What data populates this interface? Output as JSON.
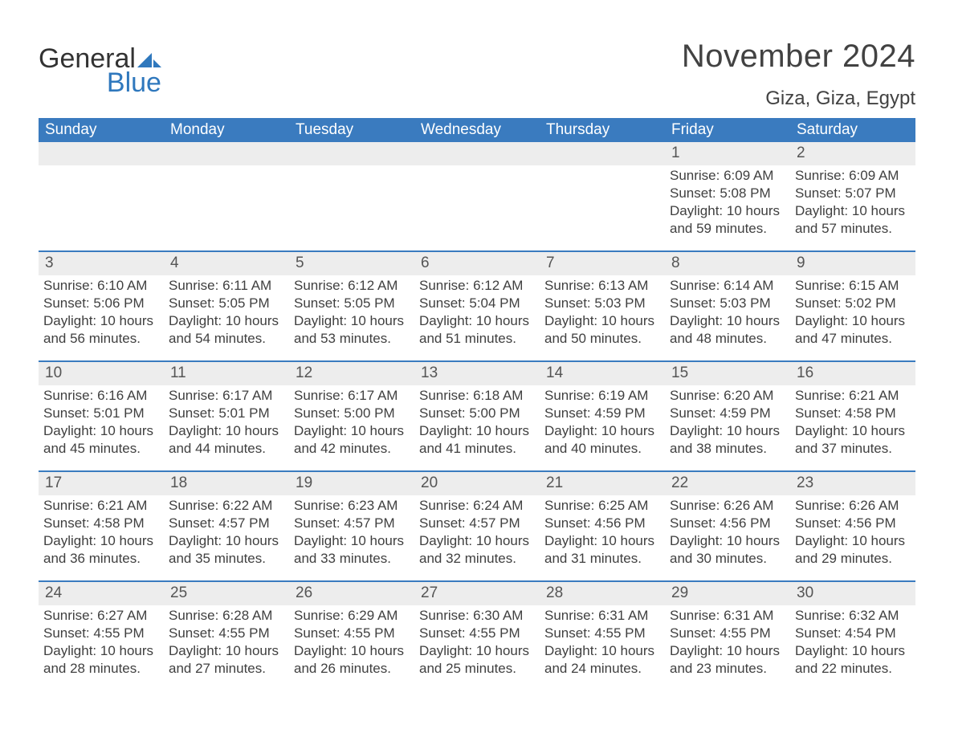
{
  "brand": {
    "word1": "General",
    "word2": "Blue"
  },
  "title": "November 2024",
  "location": "Giza, Giza, Egypt",
  "colors": {
    "header_bg": "#3a7bbf",
    "header_text": "#ffffff",
    "daynum_bg": "#ededed",
    "border": "#3a7bbf",
    "body_text": "#404040",
    "logo_blue": "#2f78bd"
  },
  "fonts": {
    "title_size_pt": 30,
    "location_size_pt": 18,
    "header_size_pt": 14,
    "body_size_pt": 13
  },
  "layout": {
    "columns": 7,
    "rows": 5
  },
  "day_headers": [
    "Sunday",
    "Monday",
    "Tuesday",
    "Wednesday",
    "Thursday",
    "Friday",
    "Saturday"
  ],
  "weeks": [
    [
      null,
      null,
      null,
      null,
      null,
      {
        "n": "1",
        "sunrise": "6:09 AM",
        "sunset": "5:08 PM",
        "daylight": "10 hours and 59 minutes."
      },
      {
        "n": "2",
        "sunrise": "6:09 AM",
        "sunset": "5:07 PM",
        "daylight": "10 hours and 57 minutes."
      }
    ],
    [
      {
        "n": "3",
        "sunrise": "6:10 AM",
        "sunset": "5:06 PM",
        "daylight": "10 hours and 56 minutes."
      },
      {
        "n": "4",
        "sunrise": "6:11 AM",
        "sunset": "5:05 PM",
        "daylight": "10 hours and 54 minutes."
      },
      {
        "n": "5",
        "sunrise": "6:12 AM",
        "sunset": "5:05 PM",
        "daylight": "10 hours and 53 minutes."
      },
      {
        "n": "6",
        "sunrise": "6:12 AM",
        "sunset": "5:04 PM",
        "daylight": "10 hours and 51 minutes."
      },
      {
        "n": "7",
        "sunrise": "6:13 AM",
        "sunset": "5:03 PM",
        "daylight": "10 hours and 50 minutes."
      },
      {
        "n": "8",
        "sunrise": "6:14 AM",
        "sunset": "5:03 PM",
        "daylight": "10 hours and 48 minutes."
      },
      {
        "n": "9",
        "sunrise": "6:15 AM",
        "sunset": "5:02 PM",
        "daylight": "10 hours and 47 minutes."
      }
    ],
    [
      {
        "n": "10",
        "sunrise": "6:16 AM",
        "sunset": "5:01 PM",
        "daylight": "10 hours and 45 minutes."
      },
      {
        "n": "11",
        "sunrise": "6:17 AM",
        "sunset": "5:01 PM",
        "daylight": "10 hours and 44 minutes."
      },
      {
        "n": "12",
        "sunrise": "6:17 AM",
        "sunset": "5:00 PM",
        "daylight": "10 hours and 42 minutes."
      },
      {
        "n": "13",
        "sunrise": "6:18 AM",
        "sunset": "5:00 PM",
        "daylight": "10 hours and 41 minutes."
      },
      {
        "n": "14",
        "sunrise": "6:19 AM",
        "sunset": "4:59 PM",
        "daylight": "10 hours and 40 minutes."
      },
      {
        "n": "15",
        "sunrise": "6:20 AM",
        "sunset": "4:59 PM",
        "daylight": "10 hours and 38 minutes."
      },
      {
        "n": "16",
        "sunrise": "6:21 AM",
        "sunset": "4:58 PM",
        "daylight": "10 hours and 37 minutes."
      }
    ],
    [
      {
        "n": "17",
        "sunrise": "6:21 AM",
        "sunset": "4:58 PM",
        "daylight": "10 hours and 36 minutes."
      },
      {
        "n": "18",
        "sunrise": "6:22 AM",
        "sunset": "4:57 PM",
        "daylight": "10 hours and 35 minutes."
      },
      {
        "n": "19",
        "sunrise": "6:23 AM",
        "sunset": "4:57 PM",
        "daylight": "10 hours and 33 minutes."
      },
      {
        "n": "20",
        "sunrise": "6:24 AM",
        "sunset": "4:57 PM",
        "daylight": "10 hours and 32 minutes."
      },
      {
        "n": "21",
        "sunrise": "6:25 AM",
        "sunset": "4:56 PM",
        "daylight": "10 hours and 31 minutes."
      },
      {
        "n": "22",
        "sunrise": "6:26 AM",
        "sunset": "4:56 PM",
        "daylight": "10 hours and 30 minutes."
      },
      {
        "n": "23",
        "sunrise": "6:26 AM",
        "sunset": "4:56 PM",
        "daylight": "10 hours and 29 minutes."
      }
    ],
    [
      {
        "n": "24",
        "sunrise": "6:27 AM",
        "sunset": "4:55 PM",
        "daylight": "10 hours and 28 minutes."
      },
      {
        "n": "25",
        "sunrise": "6:28 AM",
        "sunset": "4:55 PM",
        "daylight": "10 hours and 27 minutes."
      },
      {
        "n": "26",
        "sunrise": "6:29 AM",
        "sunset": "4:55 PM",
        "daylight": "10 hours and 26 minutes."
      },
      {
        "n": "27",
        "sunrise": "6:30 AM",
        "sunset": "4:55 PM",
        "daylight": "10 hours and 25 minutes."
      },
      {
        "n": "28",
        "sunrise": "6:31 AM",
        "sunset": "4:55 PM",
        "daylight": "10 hours and 24 minutes."
      },
      {
        "n": "29",
        "sunrise": "6:31 AM",
        "sunset": "4:55 PM",
        "daylight": "10 hours and 23 minutes."
      },
      {
        "n": "30",
        "sunrise": "6:32 AM",
        "sunset": "4:54 PM",
        "daylight": "10 hours and 22 minutes."
      }
    ]
  ],
  "labels": {
    "sunrise": "Sunrise: ",
    "sunset": "Sunset: ",
    "daylight": "Daylight: "
  }
}
